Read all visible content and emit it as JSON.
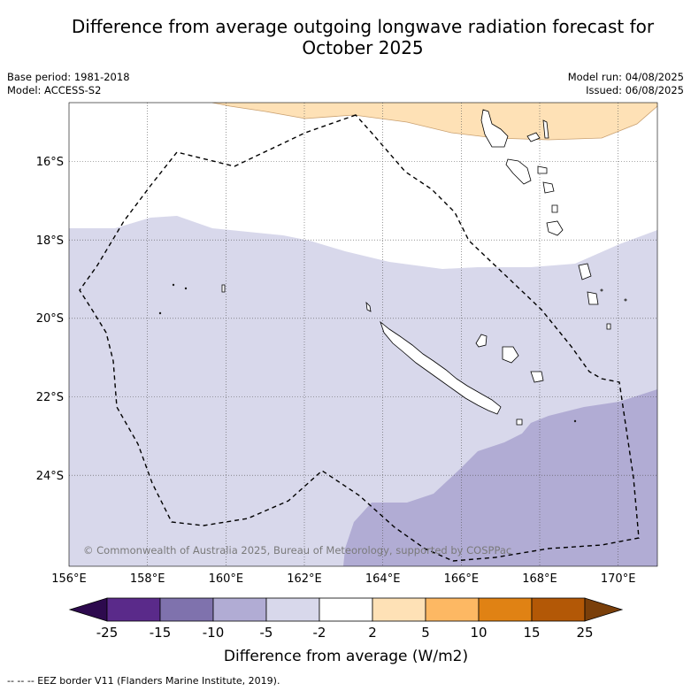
{
  "title_line1": "Difference from average outgoing longwave radiation forecast for",
  "title_line2": "October 2025",
  "meta_left": {
    "base_period": "Base period: 1981-2018",
    "model": "Model: ACCESS-S2"
  },
  "meta_right": {
    "model_run": "Model run: 04/08/2025",
    "issued": "Issued: 06/08/2025"
  },
  "map": {
    "lon_range": [
      156,
      171
    ],
    "lat_range": [
      -26.5,
      -14.5
    ],
    "lon_ticks": [
      "156°E",
      "158°E",
      "160°E",
      "162°E",
      "164°E",
      "166°E",
      "168°E",
      "170°E"
    ],
    "lat_ticks": [
      "16°S",
      "18°S",
      "20°S",
      "22°S",
      "24°S"
    ],
    "copyright": "© Commonwealth of Australia 2025, Bureau of Meteorology, supported by COSPPac"
  },
  "colorbar": {
    "label": "Difference from average (W/m2)",
    "tick_labels": [
      "-25",
      "-15",
      "-10",
      "-5",
      "-2",
      "2",
      "5",
      "10",
      "15",
      "25"
    ],
    "colors": {
      "extend_low": "#2d0a4e",
      "bins": [
        "#5a2a8a",
        "#7f72ad",
        "#b1acd4",
        "#d8d8eb",
        "#ffffff",
        "#fee1b6",
        "#fdb863",
        "#e08214",
        "#b35806"
      ],
      "extend_high": "#7a3f0a"
    }
  },
  "footnote": "-- -- -- EEZ border V11 (Flanders Marine Institute, 2019)."
}
